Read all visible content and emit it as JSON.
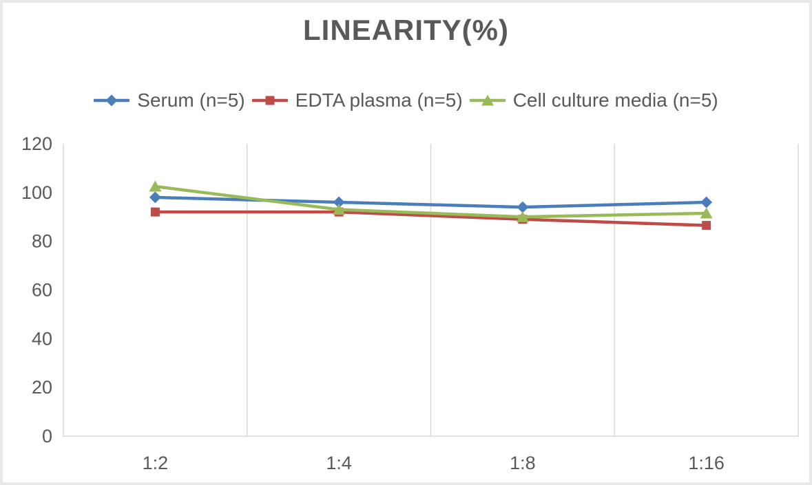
{
  "chart_data": {
    "type": "line",
    "title": "LINEARITY(%)",
    "categories": [
      "1:2",
      "1:4",
      "1:8",
      "1:16"
    ],
    "series": [
      {
        "name": "Serum (n=5)",
        "marker": "diamond",
        "color": "#4a7ebb",
        "values": [
          98,
          96,
          94,
          96
        ]
      },
      {
        "name": "EDTA plasma (n=5)",
        "marker": "square",
        "color": "#be4b48",
        "values": [
          92,
          92,
          89,
          86.5
        ]
      },
      {
        "name": "Cell culture media (n=5)",
        "marker": "triangle",
        "color": "#9aba59",
        "values": [
          102.5,
          93,
          90,
          91.5
        ]
      }
    ],
    "xlabel": "",
    "ylabel": "",
    "ylim": [
      0,
      120
    ],
    "yticks": [
      0,
      20,
      40,
      60,
      80,
      100,
      120
    ],
    "grid": "vertical-gridlines-only",
    "legend_position": "top",
    "colors": {
      "text": "#595959",
      "gridline": "#d9d9d9",
      "axis": "#d9d9d9",
      "background": "#ffffff",
      "frame_border": "#e9e9eb"
    }
  }
}
